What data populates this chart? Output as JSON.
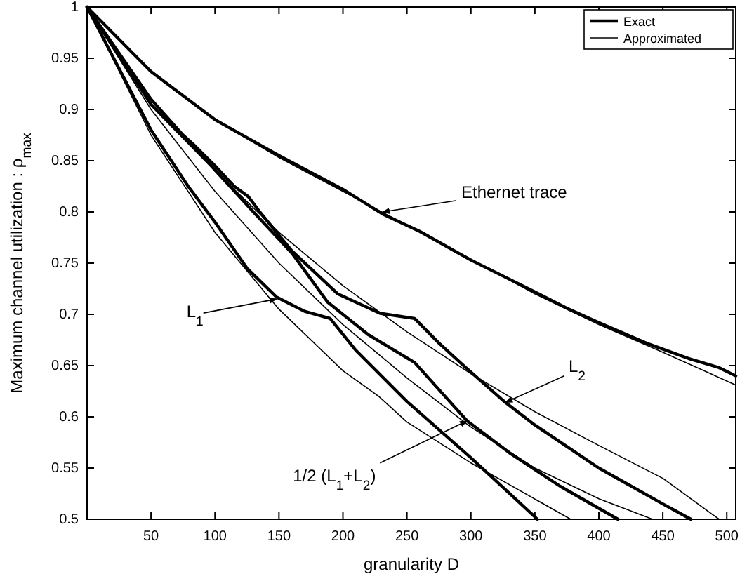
{
  "chart_data": {
    "type": "line",
    "xlabel": "granularity D",
    "ylabel": "Maximum channel utilization : ρ$_{max}$",
    "xlim": [
      0,
      507
    ],
    "ylim": [
      0.5,
      1
    ],
    "xticks": [
      50,
      100,
      150,
      200,
      250,
      300,
      350,
      400,
      450,
      500
    ],
    "yticks": [
      0.5,
      0.55,
      0.6,
      0.65,
      0.7,
      0.75,
      0.8,
      0.85,
      0.9,
      0.95,
      1
    ],
    "grid": false,
    "legend": "top right",
    "marker": "none",
    "line_style": "solid",
    "series": [
      {
        "name": "Exact",
        "color": "#000000",
        "x": [
          0,
          50,
          100,
          150,
          200,
          231,
          260,
          300,
          350,
          375,
          400,
          437,
          470,
          494,
          507
        ],
        "values": [
          1,
          0.937,
          0.89,
          0.855,
          0.822,
          0.798,
          0.781,
          0.753,
          0.722,
          0.706,
          0.692,
          0.672,
          0.657,
          0.648,
          0.64
        ]
      },
      {
        "name": "Approximated",
        "color": "#000000",
        "x": [
          0,
          50,
          100,
          150,
          200,
          250,
          300,
          350,
          400,
          450,
          507
        ],
        "values": [
          1,
          0.937,
          0.89,
          0.853,
          0.82,
          0.787,
          0.754,
          0.72,
          0.69,
          0.663,
          0.631
        ]
      },
      {
        "color": "#000000",
        "x": [
          0,
          25,
          50,
          75,
          83,
          100,
          115,
          126,
          135,
          160,
          196,
          229,
          256,
          275,
          296,
          327,
          350,
          400,
          450,
          472
        ],
        "values": [
          1,
          0.955,
          0.91,
          0.875,
          0.866,
          0.845,
          0.825,
          0.815,
          0.8,
          0.762,
          0.72,
          0.701,
          0.696,
          0.672,
          0.648,
          0.614,
          0.592,
          0.55,
          0.515,
          0.5
        ]
      },
      {
        "color": "#000000",
        "x": [
          0,
          50,
          100,
          150,
          200,
          250,
          300,
          350,
          400,
          450,
          494
        ],
        "values": [
          1,
          0.91,
          0.84,
          0.78,
          0.728,
          0.683,
          0.642,
          0.605,
          0.572,
          0.54,
          0.5
        ]
      },
      {
        "color": "#000000",
        "x": [
          0,
          50,
          97,
          130,
          160,
          188,
          220,
          256,
          297,
          330,
          370,
          415
        ],
        "values": [
          1,
          0.905,
          0.845,
          0.8,
          0.76,
          0.712,
          0.68,
          0.653,
          0.596,
          0.565,
          0.532,
          0.5
        ]
      },
      {
        "color": "#000000",
        "x": [
          0,
          50,
          100,
          150,
          200,
          250,
          300,
          350,
          400,
          442
        ],
        "values": [
          1,
          0.9,
          0.82,
          0.75,
          0.69,
          0.638,
          0.59,
          0.55,
          0.52,
          0.5
        ]
      },
      {
        "color": "#000000",
        "x": [
          0,
          50,
          79,
          100,
          125,
          148,
          170,
          190,
          210,
          250,
          300,
          352
        ],
        "values": [
          1,
          0.88,
          0.825,
          0.79,
          0.745,
          0.717,
          0.703,
          0.696,
          0.665,
          0.615,
          0.56,
          0.5
        ]
      },
      {
        "color": "#000000",
        "x": [
          0,
          50,
          100,
          150,
          200,
          228,
          250,
          300,
          378
        ],
        "values": [
          1,
          0.875,
          0.78,
          0.705,
          0.645,
          0.62,
          0.595,
          0.555,
          0.5
        ]
      }
    ],
    "annotations": [
      {
        "text": "Ethernet trace",
        "x": 231,
        "y": 0.8
      },
      {
        "text": "L$_{1}$",
        "x": 148,
        "y": 0.715
      },
      {
        "text": "L$_{2}$",
        "x": 327,
        "y": 0.614
      },
      {
        "text": "1/2 (L$_{1}$+L$_{2}$)",
        "x": 297,
        "y": 0.596
      }
    ]
  }
}
